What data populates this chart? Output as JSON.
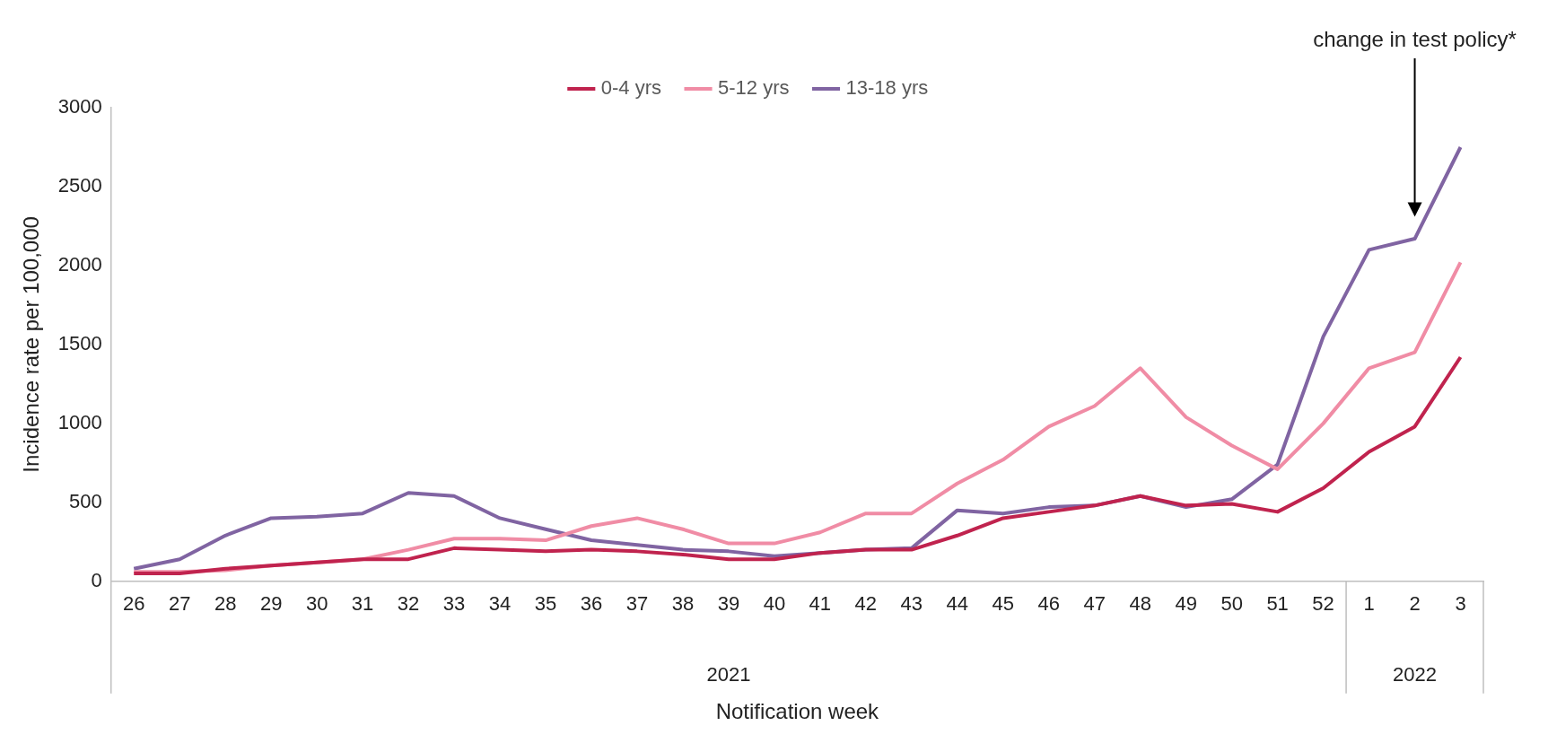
{
  "chart_data": {
    "type": "line",
    "xlabel": "Notification week",
    "ylabel": "Incidence rate per 100,000",
    "categories": [
      "26",
      "27",
      "28",
      "29",
      "30",
      "31",
      "32",
      "33",
      "34",
      "35",
      "36",
      "37",
      "38",
      "39",
      "40",
      "41",
      "42",
      "43",
      "44",
      "45",
      "46",
      "47",
      "48",
      "49",
      "50",
      "51",
      "52",
      "1",
      "2",
      "3"
    ],
    "series": [
      {
        "name": "0-4 yrs",
        "color": "#c0234e",
        "values": [
          50,
          50,
          80,
          100,
          120,
          140,
          140,
          210,
          200,
          190,
          200,
          190,
          170,
          140,
          140,
          180,
          200,
          200,
          290,
          400,
          440,
          480,
          540,
          480,
          490,
          440,
          590,
          820,
          980,
          1420
        ]
      },
      {
        "name": "5-12 yrs",
        "color": "#f08ca5",
        "values": [
          60,
          60,
          70,
          100,
          120,
          140,
          200,
          270,
          270,
          260,
          350,
          400,
          330,
          240,
          240,
          310,
          430,
          430,
          620,
          770,
          980,
          1110,
          1350,
          1040,
          860,
          710,
          1000,
          1350,
          1450,
          2020
        ]
      },
      {
        "name": "13-18 yrs",
        "color": "#8064a2",
        "values": [
          80,
          140,
          290,
          400,
          410,
          430,
          560,
          540,
          400,
          330,
          260,
          230,
          200,
          190,
          160,
          180,
          200,
          210,
          450,
          430,
          470,
          480,
          540,
          470,
          520,
          740,
          1550,
          2100,
          2170,
          2750
        ]
      }
    ],
    "ylim": [
      0,
      3000
    ],
    "yticks": [
      0,
      500,
      1000,
      1500,
      2000,
      2500,
      3000
    ],
    "grid": false,
    "legend": "top",
    "marker": "none",
    "line_style": "solid",
    "annotations": [
      "2021",
      "2022",
      "change in test policy*"
    ]
  }
}
